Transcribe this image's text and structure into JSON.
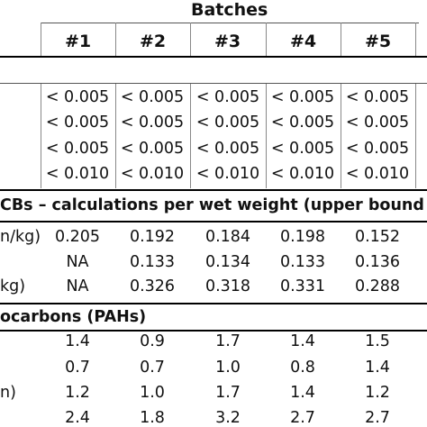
{
  "header": {
    "group": "Batches",
    "batches": [
      "#1",
      "#2",
      "#3",
      "#4",
      "#5"
    ]
  },
  "section1_rows": [
    [
      "< 0.005",
      "< 0.005",
      "< 0.005",
      "< 0.005",
      "< 0.005"
    ],
    [
      "< 0.005",
      "< 0.005",
      "< 0.005",
      "< 0.005",
      "< 0.005"
    ],
    [
      "< 0.005",
      "< 0.005",
      "< 0.005",
      "< 0.005",
      "< 0.005"
    ],
    [
      "< 0.010",
      "< 0.010",
      "< 0.010",
      "< 0.010",
      "< 0.010"
    ]
  ],
  "section2": {
    "title": "CBs – calculations per wet weight (upper bound re",
    "rows": [
      {
        "label": "n/kg)",
        "values": [
          "0.205",
          "0.192",
          "0.184",
          "0.198",
          "0.152"
        ]
      },
      {
        "label": "",
        "values": [
          "NA",
          "0.133",
          "0.134",
          "0.133",
          "0.136"
        ]
      },
      {
        "label": "kg)",
        "values": [
          "NA",
          "0.326",
          "0.318",
          "0.331",
          "0.288"
        ]
      }
    ]
  },
  "section3": {
    "title": "ocarbons (PAHs)",
    "rows": [
      {
        "label": "",
        "values": [
          "1.4",
          "0.9",
          "1.7",
          "1.4",
          "1.5"
        ]
      },
      {
        "label": "",
        "values": [
          "0.7",
          "0.7",
          "1.0",
          "0.8",
          "1.4"
        ]
      },
      {
        "label": "n)",
        "values": [
          "1.2",
          "1.0",
          "1.7",
          "1.4",
          "1.2"
        ]
      },
      {
        "label": "",
        "values": [
          "2.4",
          "1.8",
          "3.2",
          "2.7",
          "2.7"
        ]
      }
    ]
  }
}
